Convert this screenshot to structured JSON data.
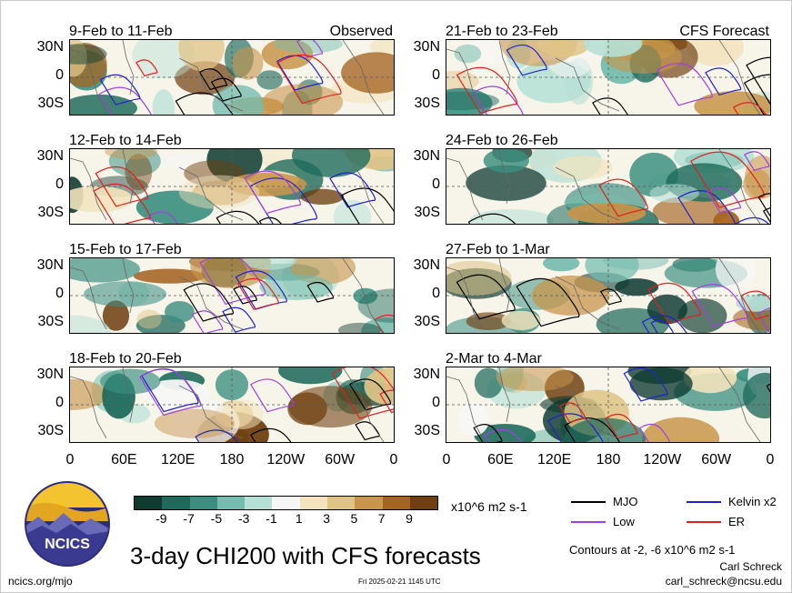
{
  "chart_data": {
    "type": "heatmap",
    "left_label": "Observed",
    "right_label": "CFS Forecast",
    "panels_observed": [
      {
        "dates": "9-Feb to 11-Feb"
      },
      {
        "dates": "12-Feb to 14-Feb"
      },
      {
        "dates": "15-Feb to 17-Feb"
      },
      {
        "dates": "18-Feb to 20-Feb"
      }
    ],
    "panels_forecast": [
      {
        "dates": "21-Feb to 23-Feb"
      },
      {
        "dates": "24-Feb to 26-Feb"
      },
      {
        "dates": "27-Feb to 1-Mar"
      },
      {
        "dates": "2-Mar to 4-Mar"
      }
    ],
    "lat_ticks": [
      "30N",
      "0",
      "30S"
    ],
    "lon_ticks": [
      "0",
      "60E",
      "120E",
      "180",
      "120W",
      "60W",
      "0"
    ],
    "colorbar": {
      "ticks": [
        "-9",
        "-7",
        "-5",
        "-3",
        "-1",
        "1",
        "3",
        "5",
        "7",
        "9"
      ],
      "units": "x10^6 m2 s-1",
      "colors": [
        "#0f3b31",
        "#1e6b5c",
        "#3a8f80",
        "#73bcae",
        "#b6e0d6",
        "#f6f6f6",
        "#f3e4bd",
        "#e0c486",
        "#c8954a",
        "#a56422",
        "#6f3f0f"
      ]
    },
    "contour_legend": [
      {
        "label": "MJO",
        "color": "#000000"
      },
      {
        "label": "Kelvin x2",
        "color": "#2020d0"
      },
      {
        "label": "Low",
        "color": "#a040e0"
      },
      {
        "label": "ER",
        "color": "#e02020"
      }
    ],
    "contour_note": "Contours at -2, -6 x10^6 m2 s-1",
    "title": "3-day CHI200 with CFS forecasts"
  },
  "logo": {
    "text": "NCICS"
  },
  "footer": {
    "url": "ncics.org/mjo",
    "timestamp": "Fri 2025-02-21 1145 UTC",
    "author": "Carl Schreck",
    "email": "carl_schreck@ncsu.edu"
  }
}
